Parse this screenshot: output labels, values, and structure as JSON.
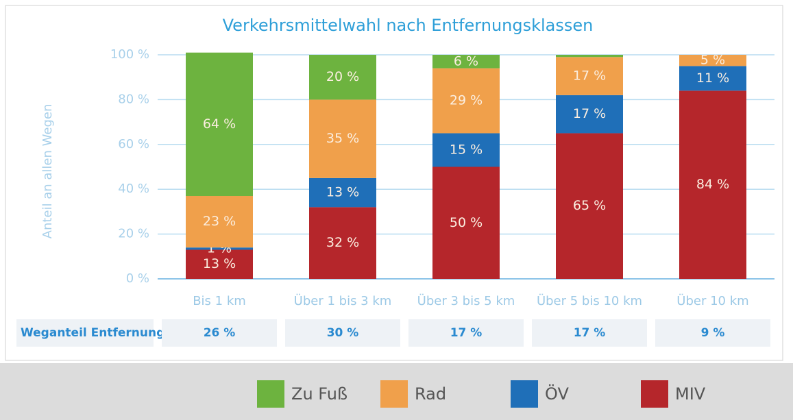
{
  "chart_data": {
    "type": "stacked_bar",
    "title": "Verkehrsmittelwahl nach Entfernungsklassen",
    "y_label": "Anteil an allen Wegen",
    "categories": [
      "Bis 1 km",
      "Über 1 bis 3 km",
      "Über 3 bis 5 km",
      "Über 5 bis 10 km",
      "Über 10 km"
    ],
    "series": [
      {
        "name": "Zu Fuß",
        "color": "#6db33f",
        "values": [
          64,
          20,
          6,
          1,
          null
        ],
        "value_labels": [
          "64 %",
          "20 %",
          "6 %",
          null,
          null
        ]
      },
      {
        "name": "Rad",
        "color": "#f0a04b",
        "values": [
          23,
          35,
          29,
          17,
          5
        ],
        "value_labels": [
          "23 %",
          "35 %",
          "29 %",
          "17 %",
          "5 %"
        ]
      },
      {
        "name": "ÖV",
        "color": "#1f6fb8",
        "values": [
          1,
          13,
          15,
          17,
          11
        ],
        "value_labels": [
          "1 %",
          "13 %",
          "15 %",
          "17 %",
          "11 %"
        ]
      },
      {
        "name": "MIV",
        "color": "#b5262b",
        "values": [
          13,
          32,
          50,
          65,
          84
        ],
        "value_labels": [
          "13 %",
          "32 %",
          "50 %",
          "65 %",
          "84 %"
        ]
      }
    ],
    "ylim": [
      0,
      100
    ],
    "yticks": [
      {
        "value": 0,
        "label": "0 %"
      },
      {
        "value": 20,
        "label": "20 %"
      },
      {
        "value": 40,
        "label": "40 %"
      },
      {
        "value": 60,
        "label": "60 %"
      },
      {
        "value": 80,
        "label": "80 %"
      },
      {
        "value": 100,
        "label": "100 %"
      }
    ],
    "grid": true,
    "distance_share": {
      "label": "Weganteil Entfernung",
      "values": [
        "26 %",
        "30 %",
        "17 %",
        "17 %",
        "9 %"
      ]
    }
  }
}
